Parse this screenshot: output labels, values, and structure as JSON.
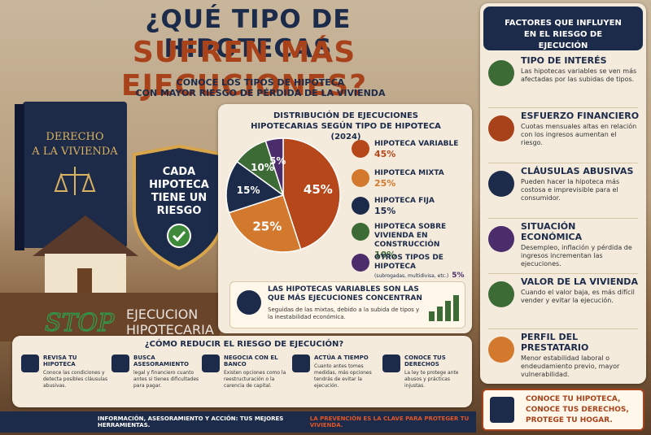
{
  "header": {
    "title_line1": "¿QUÉ TIPO DE HIPOTECAS",
    "title_line2": "SUFREN MÁS EJECUCIONES?",
    "subtitle_line1": "CONOCE LOS TIPOS DE HIPOTECA",
    "subtitle_line2": "CON MAYOR RIESGO DE PÉRDIDA DE LA VIVIENDA"
  },
  "illustration": {
    "book_line1": "DERECHO",
    "book_line2": "A LA VIVIENDA",
    "shield_lines": [
      "CADA",
      "HIPOTECA",
      "TIENE UN",
      "RIESGO"
    ],
    "stamp_stop": "STOP",
    "stamp_line1": "EJECUCION",
    "stamp_line2": "HIPOTECARIA"
  },
  "chart_data": {
    "type": "pie",
    "title": "DISTRIBUCIÓN DE EJECUCIONES HIPOTECARIAS SEGÚN TIPO DE HIPOTECA (2024)",
    "categories": [
      "HIPOTECA VARIABLE",
      "HIPOTECA MIXTA",
      "HIPOTECA FIJA",
      "HIPOTECA SOBRE VIVIENDA EN CONSTRUCCIÓN",
      "OTROS TIPOS DE HIPOTECA"
    ],
    "values": [
      45,
      25,
      15,
      10,
      5
    ],
    "value_labels": [
      "45%",
      "25%",
      "15%",
      "10%",
      "5%"
    ],
    "colors": [
      "#b5471a",
      "#d2792e",
      "#1c2b4a",
      "#3d6b35",
      "#4b2d6b"
    ],
    "note": "(subrogadas, multidivisa, etc.)"
  },
  "callout": {
    "title": "LAS HIPOTECAS VARIABLES SON LAS QUE MÁS EJECUCIONES CONCENTRAN",
    "text": "Seguidas de las mixtas, debido a la subida de tipos y la inestabilidad económica."
  },
  "factors": {
    "title": "FACTORES QUE INFLUYEN EN EL RIESGO DE EJECUCIÓN",
    "items": [
      {
        "title": "TIPO DE INTERÉS",
        "text": "Las hipotecas variables se ven más afectadas por las subidas de tipos."
      },
      {
        "title": "ESFUERZO FINANCIERO",
        "text": "Cuotas mensuales altas en relación con los ingresos aumentan el riesgo."
      },
      {
        "title": "CLÁUSULAS ABUSIVAS",
        "text": "Pueden hacer la hipoteca más costosa e imprevisible para el consumidor."
      },
      {
        "title": "SITUACIÓN ECONÓMICA",
        "text": "Desempleo, inflación y pérdida de ingresos incrementan las ejecuciones."
      },
      {
        "title": "VALOR DE LA VIVIENDA",
        "text": "Cuando el valor baja, es más difícil vender y evitar la ejecución."
      },
      {
        "title": "PERFIL DEL PRESTATARIO",
        "text": "Menor estabilidad laboral o endeudamiento previo, mayor vulnerabilidad."
      }
    ]
  },
  "slogan": "CONOCE TU HIPOTECA, CONOCE TUS DERECHOS, PROTEGE TU HOGAR.",
  "tips": {
    "title": "¿CÓMO REDUCIR EL RIESGO DE EJECUCIÓN?",
    "items": [
      {
        "title": "REVISA TU HIPOTECA",
        "text": "Conoce las condiciones y detecta posibles cláusulas abusivas."
      },
      {
        "title": "BUSCA ASESORAMIENTO",
        "text": "legal y financiero cuanto antes si tienes dificultades para pagar."
      },
      {
        "title": "NEGOCIA CON EL BANCO",
        "text": "Existen opciones como la reestructuración o la carencia de capital."
      },
      {
        "title": "ACTÚA A TIEMPO",
        "text": "Cuanto antes tomes medidas, más opciones tendrás de evitar la ejecución."
      },
      {
        "title": "CONOCE TUS DERECHOS",
        "text": "La ley te protege ante abusos y prácticas injustas."
      }
    ]
  },
  "footer": {
    "text": "INFORMACIÓN, ASESORAMIENTO Y ACCIÓN: TUS MEJORES HERRAMIENTAS.",
    "highlight": "LA PREVENCIÓN ES LA CLAVE PARA PROTEGER TU VIVIENDA."
  }
}
